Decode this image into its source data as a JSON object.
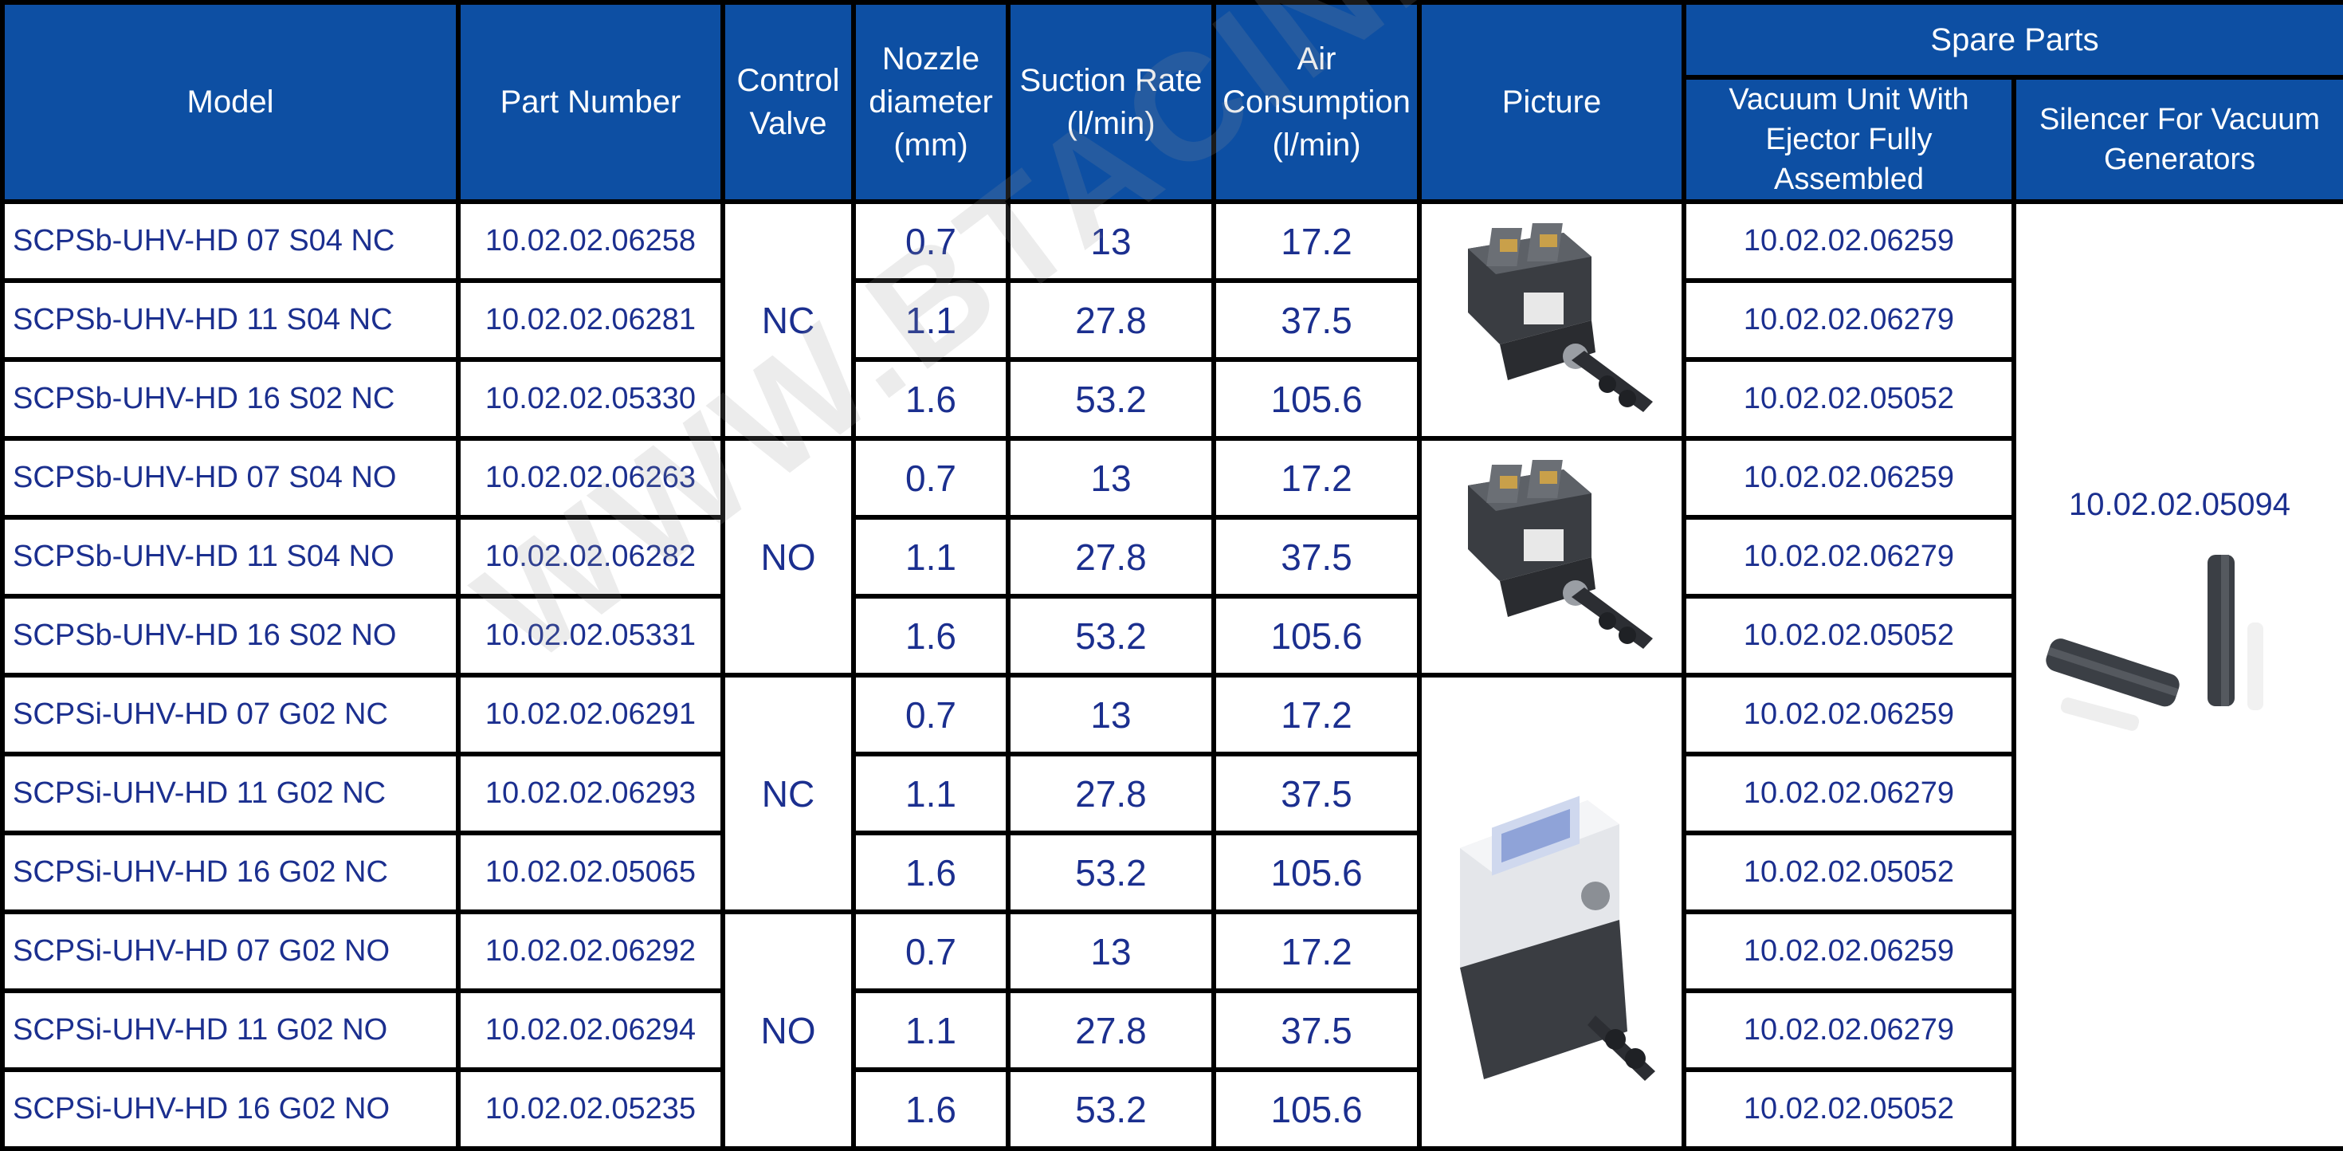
{
  "headers": {
    "model": "Model",
    "part_number": "Part Number",
    "control_valve": [
      "Control",
      "Valve"
    ],
    "nozzle": [
      "Nozzle",
      "diameter",
      "(mm)"
    ],
    "suction": [
      "Suction Rate",
      "(l/min)"
    ],
    "air": [
      "Air",
      "Consumption",
      "(l/min)"
    ],
    "picture": "Picture",
    "spare_parts": "Spare Parts",
    "vacuum_unit": [
      "Vacuum Unit With",
      "Ejector Fully Assembled"
    ],
    "silencer": [
      "Silencer For Vacuum",
      "Generators"
    ]
  },
  "valves": [
    "NC",
    "NO",
    "NC",
    "NO"
  ],
  "rows": [
    {
      "model": "SCPSb-UHV-HD 07 S04 NC",
      "part": "10.02.02.06258",
      "nozzle": "0.7",
      "suction": "13",
      "air": "17.2",
      "spare": "10.02.02.06259"
    },
    {
      "model": "SCPSb-UHV-HD 11 S04 NC",
      "part": "10.02.02.06281",
      "nozzle": "1.1",
      "suction": "27.8",
      "air": "37.5",
      "spare": "10.02.02.06279"
    },
    {
      "model": "SCPSb-UHV-HD 16 S02 NC",
      "part": "10.02.02.05330",
      "nozzle": "1.6",
      "suction": "53.2",
      "air": "105.6",
      "spare": "10.02.02.05052"
    },
    {
      "model": "SCPSb-UHV-HD 07 S04 NO",
      "part": "10.02.02.06263",
      "nozzle": "0.7",
      "suction": "13",
      "air": "17.2",
      "spare": "10.02.02.06259"
    },
    {
      "model": "SCPSb-UHV-HD 11 S04 NO",
      "part": "10.02.02.06282",
      "nozzle": "1.1",
      "suction": "27.8",
      "air": "37.5",
      "spare": "10.02.02.06279"
    },
    {
      "model": "SCPSb-UHV-HD 16 S02 NO",
      "part": "10.02.02.05331",
      "nozzle": "1.6",
      "suction": "53.2",
      "air": "105.6",
      "spare": "10.02.02.05052"
    },
    {
      "model": "SCPSi-UHV-HD 07 G02 NC",
      "part": "10.02.02.06291",
      "nozzle": "0.7",
      "suction": "13",
      "air": "17.2",
      "spare": "10.02.02.06259"
    },
    {
      "model": "SCPSi-UHV-HD 11 G02 NC",
      "part": "10.02.02.06293",
      "nozzle": "1.1",
      "suction": "27.8",
      "air": "37.5",
      "spare": "10.02.02.06279"
    },
    {
      "model": "SCPSi-UHV-HD 16 G02 NC",
      "part": "10.02.02.05065",
      "nozzle": "1.6",
      "suction": "53.2",
      "air": "105.6",
      "spare": "10.02.02.05052"
    },
    {
      "model": "SCPSi-UHV-HD 07 G02 NO",
      "part": "10.02.02.06292",
      "nozzle": "0.7",
      "suction": "13",
      "air": "17.2",
      "spare": "10.02.02.06259"
    },
    {
      "model": "SCPSi-UHV-HD 11 G02 NO",
      "part": "10.02.02.06294",
      "nozzle": "1.1",
      "suction": "27.8",
      "air": "37.5",
      "spare": "10.02.02.06279"
    },
    {
      "model": "SCPSi-UHV-HD 16 G02 NO",
      "part": "10.02.02.05235",
      "nozzle": "1.6",
      "suction": "53.2",
      "air": "105.6",
      "spare": "10.02.02.05052"
    }
  ],
  "silencer_part": "10.02.02.05094",
  "watermark": "WWW.BTACIN.CO.TH",
  "colors": {
    "header_bg": "#0d4fa3",
    "text": "#1b2f8f",
    "grid": "#000000"
  }
}
